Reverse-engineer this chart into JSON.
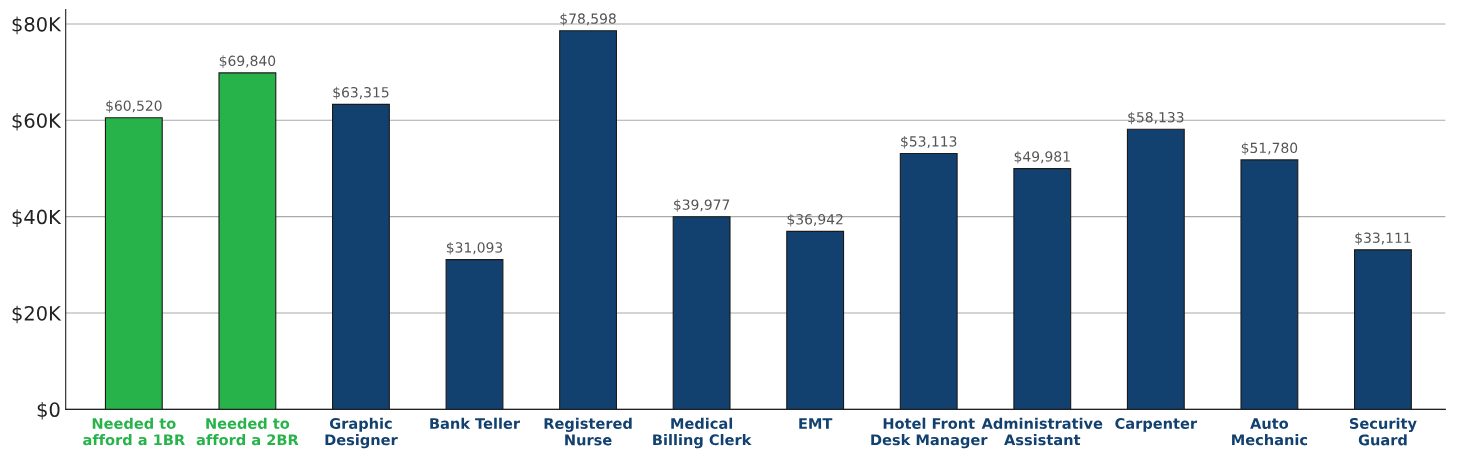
{
  "chart_data": {
    "type": "bar",
    "categories": [
      "Needed to\nafford a 1BR",
      "Needed to\nafford a 2BR",
      "Graphic\nDesigner",
      "Bank Teller",
      "Registered\nNurse",
      "Medical\nBilling Clerk",
      "EMT",
      "Hotel Front\nDesk Manager",
      "Administrative\nAssistant",
      "Carpenter",
      "Auto\nMechanic",
      "Security\nGuard"
    ],
    "values": [
      60520,
      69840,
      63315,
      31093,
      78598,
      39977,
      36942,
      53113,
      49981,
      58133,
      51780,
      33111
    ],
    "value_labels": [
      "$60,520",
      "$69,840",
      "$63,315",
      "$31,093",
      "$78,598",
      "$39,977",
      "$36,942",
      "$53,113",
      "$49,981",
      "$58,133",
      "$51,780",
      "$33,111"
    ],
    "colors": [
      "#27b34a",
      "#27b34a",
      "#124170",
      "#124170",
      "#124170",
      "#124170",
      "#124170",
      "#124170",
      "#124170",
      "#124170",
      "#124170",
      "#124170"
    ],
    "ylim": [
      0,
      83000
    ],
    "yticks": [
      {
        "value": 0,
        "label": "$0"
      },
      {
        "value": 20000,
        "label": "$20K"
      },
      {
        "value": 40000,
        "label": "$40K"
      },
      {
        "value": 60000,
        "label": "$60K"
      },
      {
        "value": 80000,
        "label": "$80K"
      }
    ],
    "grid": "y",
    "legend": false
  }
}
